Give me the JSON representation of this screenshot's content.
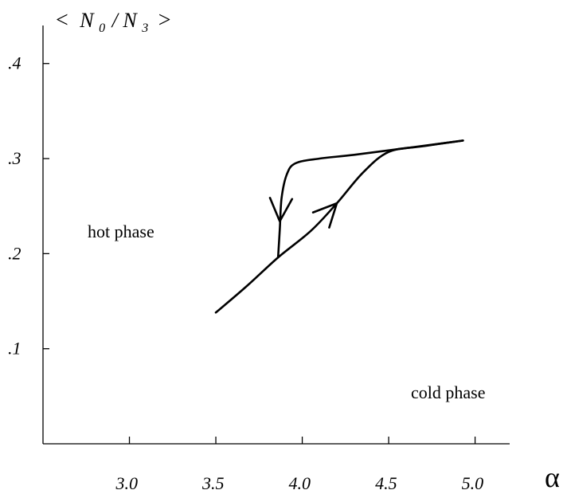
{
  "chart_data": {
    "type": "line",
    "ylabel": "< N0/N3 >",
    "ylabel_parts": {
      "open": "<",
      "n0": "N",
      "sub0": "0",
      "slash": "/",
      "n3": "N",
      "sub3": "3",
      "close": ">"
    },
    "xlabel": "α",
    "xlim": [
      2.5,
      5.2
    ],
    "ylim": [
      0.0,
      0.44
    ],
    "x_ticks": [
      {
        "value": 3.0,
        "label": "3.0"
      },
      {
        "value": 3.5,
        "label": "3.5"
      },
      {
        "value": 4.0,
        "label": "4.0"
      },
      {
        "value": 4.5,
        "label": "4.5"
      },
      {
        "value": 5.0,
        "label": "5.0"
      }
    ],
    "y_ticks": [
      {
        "value": 0.1,
        "label": ".1"
      },
      {
        "value": 0.2,
        "label": ".2"
      },
      {
        "value": 0.3,
        "label": ".3"
      },
      {
        "value": 0.4,
        "label": ".4"
      }
    ],
    "grid": false,
    "series": [
      {
        "direction": "increasing alpha",
        "x": [
          3.5,
          3.68,
          3.86,
          4.05,
          4.2,
          4.35,
          4.5,
          4.7,
          4.93
        ],
        "y": [
          0.138,
          0.166,
          0.196,
          0.224,
          0.253,
          0.285,
          0.307,
          0.313,
          0.319
        ]
      },
      {
        "direction": "decreasing alpha",
        "x": [
          4.93,
          4.6,
          4.3,
          4.1,
          3.96,
          3.91,
          3.88,
          3.87,
          3.86
        ],
        "y": [
          0.319,
          0.311,
          0.304,
          0.3,
          0.295,
          0.283,
          0.258,
          0.225,
          0.196
        ]
      }
    ],
    "arrows": [
      {
        "series": "increasing alpha",
        "at": {
          "x": 4.2,
          "y": 0.253
        }
      },
      {
        "series": "decreasing alpha",
        "at": {
          "x": 3.87,
          "y": 0.234
        }
      }
    ],
    "annotations": [
      {
        "text": "hot phase",
        "x": 2.74,
        "y": 0.2
      },
      {
        "text": "cold phase",
        "x": 4.55,
        "y": 0.068
      }
    ]
  }
}
